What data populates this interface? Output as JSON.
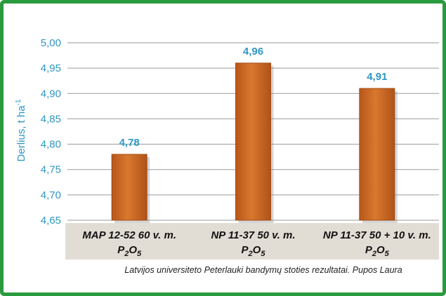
{
  "chart_data": {
    "type": "bar",
    "categories": [
      {
        "main": "MAP 12-52 60 v. m.",
        "line2": "P",
        "sub1": "2",
        "mid": "O",
        "sub2": "5"
      },
      {
        "main": "NP 11-37 50 v. m.",
        "line2": "P",
        "sub1": "2",
        "mid": "O",
        "sub2": "5"
      },
      {
        "main": "NP 11-37 50 + 10 v. m.",
        "line2": "P",
        "sub1": "2",
        "mid": "O",
        "sub2": "5"
      }
    ],
    "values": [
      4.78,
      4.96,
      4.91
    ],
    "value_labels": [
      "4,78",
      "4,96",
      "4,91"
    ],
    "ylabel": "Derlius, t ha",
    "ylabel_sup": "-1",
    "ylim": [
      4.65,
      5.0
    ],
    "yticks": [
      "4,65",
      "4,70",
      "4,75",
      "4,80",
      "4,85",
      "4,90",
      "4,95",
      "5,00"
    ],
    "ytick_values": [
      4.65,
      4.7,
      4.75,
      4.8,
      4.85,
      4.9,
      4.95,
      5.0
    ],
    "grid": true,
    "colors": {
      "bar": "#c0601c",
      "bar_light": "#d9782e",
      "grid": "#9a9a9a",
      "axis_text": "#2e97c2",
      "category_band": "#e2ddd4",
      "frame": "#2a9a3e"
    }
  },
  "source_note": "Latvijos universiteto Peterlauki bandymų stoties rezultatai. Pupos Laura"
}
